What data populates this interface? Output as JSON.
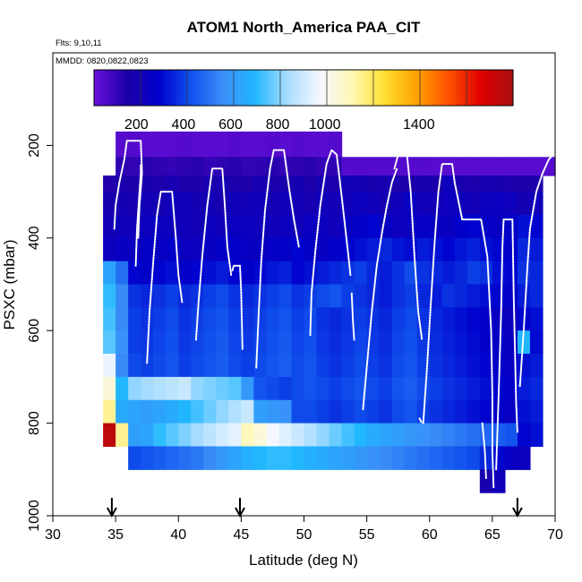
{
  "chart_data": {
    "type": "heatmap",
    "title": "ATOM1 North_America PAA_CIT",
    "subtitle_flights": "Flts: 9,10,11",
    "subtitle_dates": "MMDD: 0820,0822,0823",
    "xlabel": "Latitude (deg N)",
    "ylabel": "PSXC (mbar)",
    "xlim": [
      30,
      70
    ],
    "ylim": [
      1000,
      0
    ],
    "x_ticks": [
      30,
      35,
      40,
      45,
      50,
      55,
      60,
      65,
      70
    ],
    "y_ticks": [
      200,
      400,
      600,
      800,
      1000
    ],
    "colorbar": {
      "range": [
        20,
        1800
      ],
      "tick_values": [
        200,
        400,
        600,
        800,
        1000,
        1400
      ],
      "tick_labels": [
        "200",
        "400",
        "600",
        "800",
        "1000",
        "1400"
      ],
      "palette": [
        "#6a10dc",
        "#1e00a8",
        "#0000cc",
        "#1050ee",
        "#3a8ef8",
        "#20b8ff",
        "#a8dcff",
        "#f4f8ff",
        "#fff8b4",
        "#ffe030",
        "#ffa000",
        "#ff5000",
        "#e00000",
        "#a81010"
      ]
    },
    "grid_cells": {
      "lat_edges": [
        34,
        35,
        36,
        37,
        38,
        39,
        40,
        41,
        42,
        43,
        44,
        45,
        46,
        47,
        48,
        49,
        50,
        51,
        52,
        53,
        54,
        55,
        56,
        57,
        58,
        59,
        60,
        61,
        62,
        63,
        64,
        65,
        66,
        67,
        68,
        69,
        70
      ],
      "pressure_edges": [
        170,
        225,
        265,
        300,
        325,
        350,
        375,
        400,
        425,
        450,
        475,
        500,
        525,
        550,
        575,
        600,
        625,
        650,
        675,
        700,
        725,
        750,
        775,
        800,
        825,
        850,
        875,
        900,
        930,
        950,
        970
      ],
      "rows": [
        {
          "p0": 170,
          "p1": 225,
          "lat0": 35,
          "lat1": 53,
          "values": [
            60,
            60,
            55,
            50,
            55,
            60,
            55,
            50,
            55,
            60,
            55,
            55,
            60,
            55,
            60,
            50,
            55,
            60
          ]
        },
        {
          "p0": 225,
          "p1": 265,
          "lat0": 35,
          "lat1": 70,
          "values": [
            130,
            120,
            140,
            130,
            120,
            130,
            140,
            120,
            130,
            140,
            120,
            130,
            140,
            120,
            130,
            140,
            120,
            130,
            60,
            60,
            60,
            60,
            60,
            60,
            60,
            55,
            55,
            55,
            55,
            55,
            55,
            55,
            55,
            55,
            55
          ]
        },
        {
          "p0": 265,
          "p1": 300,
          "lat0": 34,
          "lat1": 69,
          "values": [
            150,
            170,
            160,
            180,
            170,
            190,
            170,
            160,
            180,
            200,
            170,
            160,
            190,
            170,
            180,
            200,
            170,
            190,
            170,
            210,
            200,
            180,
            190,
            170,
            160,
            180,
            170,
            230,
            180,
            170,
            190,
            180,
            170,
            160,
            170
          ]
        },
        {
          "p0": 300,
          "p1": 350,
          "lat0": 34,
          "lat1": 69,
          "values": [
            180,
            200,
            190,
            210,
            200,
            230,
            220,
            200,
            210,
            190,
            220,
            210,
            230,
            200,
            220,
            210,
            190,
            220,
            210,
            230,
            240,
            220,
            200,
            230,
            250,
            220,
            210,
            240,
            230,
            210,
            240,
            250,
            230,
            200,
            220
          ]
        },
        {
          "p0": 350,
          "p1": 400,
          "lat0": 34,
          "lat1": 69,
          "values": [
            210,
            230,
            220,
            240,
            250,
            230,
            220,
            210,
            240,
            230,
            250,
            240,
            230,
            220,
            240,
            230,
            250,
            240,
            230,
            260,
            280,
            300,
            260,
            240,
            250,
            270,
            260,
            250,
            290,
            300,
            270,
            260,
            280,
            320,
            300
          ]
        },
        {
          "p0": 400,
          "p1": 450,
          "lat0": 34,
          "lat1": 69,
          "values": [
            240,
            260,
            250,
            270,
            260,
            280,
            250,
            240,
            260,
            270,
            280,
            260,
            250,
            270,
            280,
            300,
            270,
            260,
            280,
            300,
            320,
            340,
            360,
            330,
            310,
            340,
            320,
            300,
            330,
            350,
            320,
            300,
            290,
            360,
            340
          ]
        },
        {
          "p0": 450,
          "p1": 500,
          "lat0": 34,
          "lat1": 69,
          "values": [
            640,
            500,
            300,
            280,
            300,
            320,
            280,
            300,
            320,
            340,
            300,
            290,
            310,
            330,
            350,
            300,
            320,
            340,
            360,
            380,
            400,
            360,
            340,
            380,
            420,
            380,
            360,
            340,
            360,
            400,
            380,
            320,
            300,
            380,
            360
          ]
        },
        {
          "p0": 500,
          "p1": 550,
          "lat0": 34,
          "lat1": 69,
          "values": [
            720,
            560,
            380,
            360,
            380,
            400,
            360,
            380,
            400,
            420,
            380,
            360,
            380,
            400,
            420,
            380,
            400,
            420,
            440,
            400,
            380,
            360,
            340,
            380,
            400,
            360,
            340,
            380,
            360,
            340,
            320,
            300,
            280,
            340,
            360
          ]
        },
        {
          "p0": 550,
          "p1": 600,
          "lat0": 34,
          "lat1": 69,
          "values": [
            740,
            560,
            400,
            380,
            400,
            420,
            380,
            400,
            420,
            440,
            400,
            380,
            400,
            420,
            440,
            400,
            420,
            380,
            360,
            380,
            400,
            380,
            360,
            400,
            420,
            380,
            360,
            340,
            320,
            300,
            280,
            260,
            240,
            300,
            320
          ]
        },
        {
          "p0": 600,
          "p1": 650,
          "lat0": 34,
          "lat1": 69,
          "values": [
            760,
            580,
            400,
            390,
            410,
            430,
            390,
            410,
            430,
            450,
            410,
            390,
            410,
            430,
            450,
            410,
            430,
            390,
            370,
            390,
            410,
            390,
            370,
            410,
            430,
            390,
            370,
            350,
            330,
            310,
            290,
            270,
            250,
            700,
            310
          ]
        },
        {
          "p0": 650,
          "p1": 700,
          "lat0": 34,
          "lat1": 69,
          "values": [
            960,
            560,
            420,
            400,
            420,
            440,
            400,
            420,
            440,
            460,
            420,
            400,
            420,
            440,
            460,
            420,
            440,
            400,
            380,
            400,
            420,
            400,
            380,
            420,
            440,
            400,
            380,
            360,
            340,
            320,
            300,
            280,
            260,
            320,
            340
          ]
        },
        {
          "p0": 700,
          "p1": 750,
          "lat0": 34,
          "lat1": 69,
          "values": [
            1050,
            700,
            820,
            840,
            860,
            880,
            900,
            820,
            800,
            780,
            760,
            600,
            440,
            420,
            400,
            420,
            440,
            420,
            400,
            420,
            440,
            420,
            400,
            440,
            460,
            420,
            400,
            380,
            360,
            340,
            320,
            300,
            280,
            340,
            360
          ]
        },
        {
          "p0": 750,
          "p1": 800,
          "lat0": 34,
          "lat1": 69,
          "values": [
            1150,
            660,
            640,
            620,
            640,
            660,
            700,
            740,
            780,
            820,
            860,
            900,
            620,
            600,
            580,
            420,
            420,
            400,
            380,
            400,
            420,
            400,
            380,
            420,
            440,
            400,
            380,
            360,
            340,
            320,
            300,
            280,
            260,
            320,
            340
          ]
        },
        {
          "p0": 800,
          "p1": 850,
          "lat0": 34,
          "lat1": 69,
          "values": [
            1750,
            1150,
            620,
            640,
            720,
            760,
            800,
            840,
            880,
            920,
            950,
            1100,
            1050,
            980,
            940,
            900,
            860,
            820,
            780,
            740,
            700,
            660,
            640,
            620,
            600,
            580,
            560,
            540,
            520,
            500,
            480,
            460,
            440,
            300,
            320
          ]
        },
        {
          "p0": 850,
          "p1": 900,
          "lat0": 36,
          "lat1": 68,
          "values": [
            420,
            440,
            460,
            480,
            500,
            520,
            560,
            600,
            640,
            680,
            700,
            720,
            720,
            700,
            680,
            660,
            640,
            620,
            600,
            580,
            560,
            540,
            520,
            500,
            480,
            460,
            440,
            420,
            360,
            300,
            260,
            240
          ]
        },
        {
          "p0": 900,
          "p1": 950,
          "lat0": 64,
          "lat1": 66,
          "values": [
            180,
            220
          ]
        }
      ]
    },
    "flight_tracks": [
      [
        [
          34.9,
          380
        ],
        [
          35.0,
          330
        ],
        [
          35.3,
          280
        ],
        [
          35.7,
          230
        ],
        [
          35.9,
          190
        ],
        [
          37.0,
          190
        ],
        [
          37.1,
          260
        ],
        [
          36.9,
          330
        ],
        [
          36.8,
          400
        ]
      ],
      [
        [
          36.6,
          460
        ],
        [
          36.7,
          380
        ],
        [
          36.9,
          300
        ],
        [
          37.0,
          260
        ],
        [
          37.0,
          240
        ]
      ],
      [
        [
          37.5,
          670
        ],
        [
          37.7,
          560
        ],
        [
          38.0,
          450
        ],
        [
          38.3,
          350
        ],
        [
          38.6,
          300
        ],
        [
          39.5,
          300
        ],
        [
          39.8,
          400
        ],
        [
          40.0,
          480
        ],
        [
          40.3,
          540
        ]
      ],
      [
        [
          41.4,
          620
        ],
        [
          41.6,
          540
        ],
        [
          41.9,
          440
        ],
        [
          42.3,
          330
        ],
        [
          42.7,
          250
        ],
        [
          43.5,
          250
        ],
        [
          43.7,
          330
        ],
        [
          43.9,
          420
        ],
        [
          44.2,
          480
        ]
      ],
      [
        [
          44.3,
          470
        ],
        [
          44.4,
          460
        ],
        [
          44.9,
          460
        ],
        [
          45.0,
          520
        ],
        [
          45.1,
          640
        ]
      ],
      [
        [
          46.2,
          680
        ],
        [
          46.4,
          560
        ],
        [
          46.6,
          450
        ],
        [
          46.9,
          340
        ],
        [
          47.3,
          250
        ],
        [
          47.6,
          210
        ],
        [
          48.4,
          210
        ],
        [
          48.8,
          290
        ],
        [
          49.2,
          360
        ],
        [
          49.6,
          420
        ]
      ],
      [
        [
          50.5,
          610
        ],
        [
          50.6,
          520
        ],
        [
          50.9,
          430
        ],
        [
          51.3,
          330
        ],
        [
          51.8,
          240
        ],
        [
          52.2,
          210
        ],
        [
          52.6,
          220
        ],
        [
          53.0,
          310
        ],
        [
          53.5,
          430
        ],
        [
          53.7,
          480
        ]
      ],
      [
        [
          53.8,
          520
        ],
        [
          53.9,
          580
        ],
        [
          54.0,
          620
        ]
      ],
      [
        [
          54.7,
          770
        ],
        [
          55.0,
          680
        ],
        [
          55.4,
          560
        ],
        [
          55.8,
          460
        ],
        [
          56.2,
          390
        ],
        [
          56.6,
          330
        ],
        [
          57.0,
          280
        ],
        [
          57.4,
          250
        ]
      ],
      [
        [
          57.2,
          250
        ],
        [
          57.5,
          220
        ],
        [
          58.2,
          220
        ],
        [
          58.5,
          300
        ],
        [
          58.8,
          440
        ],
        [
          59.1,
          560
        ],
        [
          59.4,
          620
        ]
      ],
      [
        [
          59.2,
          790
        ],
        [
          59.4,
          800
        ]
      ],
      [
        [
          59.5,
          800
        ],
        [
          59.8,
          680
        ],
        [
          60.1,
          540
        ],
        [
          60.4,
          410
        ],
        [
          60.7,
          300
        ],
        [
          61.0,
          240
        ],
        [
          61.8,
          240
        ],
        [
          62.0,
          280
        ],
        [
          62.6,
          360
        ],
        [
          64.1,
          360
        ],
        [
          64.6,
          440
        ],
        [
          64.9,
          600
        ],
        [
          65.0,
          740
        ],
        [
          65.0,
          860
        ],
        [
          65.1,
          940
        ]
      ],
      [
        [
          65.3,
          900
        ],
        [
          65.5,
          740
        ],
        [
          65.7,
          560
        ],
        [
          65.8,
          420
        ],
        [
          65.9,
          360
        ],
        [
          66.6,
          360
        ],
        [
          66.7,
          520
        ],
        [
          66.8,
          640
        ],
        [
          66.9,
          760
        ],
        [
          67.0,
          820
        ]
      ],
      [
        [
          67.2,
          720
        ],
        [
          67.5,
          600
        ],
        [
          67.8,
          460
        ],
        [
          68.0,
          380
        ],
        [
          68.5,
          300
        ],
        [
          69.0,
          260
        ],
        [
          69.5,
          230
        ],
        [
          70.0,
          215
        ]
      ],
      [
        [
          64.2,
          800
        ],
        [
          64.4,
          860
        ],
        [
          64.5,
          920
        ]
      ]
    ],
    "arrow_latitudes": [
      34.7,
      44.9,
      67.0
    ]
  }
}
